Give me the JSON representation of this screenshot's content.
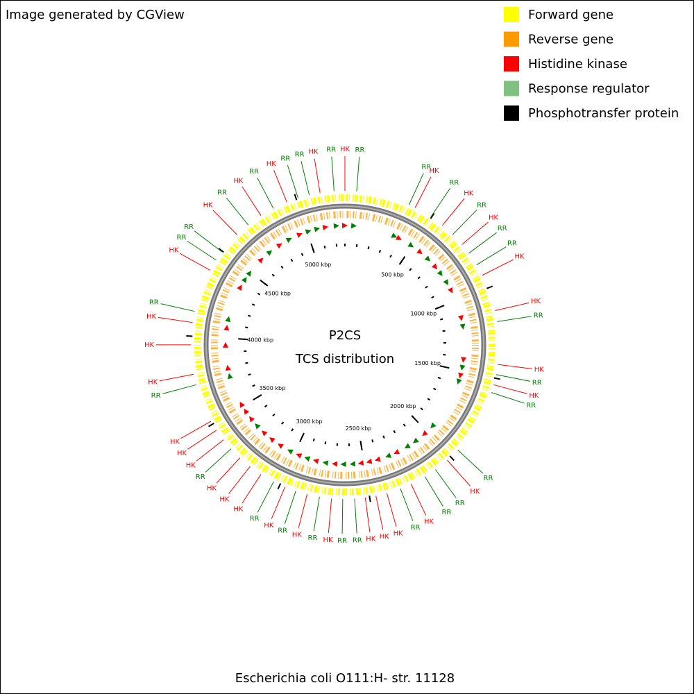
{
  "header": {
    "title": "Image generated by CGView"
  },
  "legend": [
    {
      "name": "Forward gene",
      "color": "#ffff00"
    },
    {
      "name": "Reverse gene",
      "color": "#ff9900"
    },
    {
      "name": "Histidine kinase",
      "color": "#ff0000"
    },
    {
      "name": "Response regulator",
      "color": "#80c080"
    },
    {
      "name": "Phosphotransfer protein",
      "color": "#000000"
    }
  ],
  "center": {
    "title": "P2CS",
    "subtitle": "TCS distribution"
  },
  "map": {
    "xlim": [
      0,
      5270
    ],
    "xticks": [
      {
        "value": 500,
        "label": "500 kbp"
      },
      {
        "value": 1000,
        "label": "1000 kbp"
      },
      {
        "value": 1500,
        "label": "1500 kbp"
      },
      {
        "value": 2000,
        "label": "2000 kbp"
      },
      {
        "value": 2500,
        "label": "2500 kbp"
      },
      {
        "value": 3000,
        "label": "3000 kbp"
      },
      {
        "value": 3500,
        "label": "3500 kbp"
      },
      {
        "value": 4000,
        "label": "4000 kbp"
      },
      {
        "value": 4500,
        "label": "4500 kbp"
      },
      {
        "value": 5000,
        "label": "5000 kbp"
      }
    ],
    "label_colors": {
      "HK": "#ff0000",
      "RR": "#008000"
    },
    "features": [
      {
        "label": "HK",
        "pos": 0
      },
      {
        "label": "RR",
        "pos": 64
      },
      {
        "label": "RR",
        "pos": 360
      },
      {
        "label": "HK",
        "pos": 397
      },
      {
        "label": "RR",
        "pos": 496
      },
      {
        "label": "HK",
        "pos": 574
      },
      {
        "label": "RR",
        "pos": 649
      },
      {
        "label": "HK",
        "pos": 723
      },
      {
        "label": "RR",
        "pos": 783
      },
      {
        "label": "RR",
        "pos": 859
      },
      {
        "label": "HK",
        "pos": 924
      },
      {
        "label": "HK",
        "pos": 1129
      },
      {
        "label": "RR",
        "pos": 1190
      },
      {
        "label": "HK",
        "pos": 1424
      },
      {
        "label": "RR",
        "pos": 1480
      },
      {
        "label": "HK",
        "pos": 1537
      },
      {
        "label": "RR",
        "pos": 1581
      },
      {
        "label": "RR",
        "pos": 1946
      },
      {
        "label": "HK",
        "pos": 2026
      },
      {
        "label": "RR",
        "pos": 2108
      },
      {
        "label": "RR",
        "pos": 2177
      },
      {
        "label": "HK",
        "pos": 2263
      },
      {
        "label": "RR",
        "pos": 2326
      },
      {
        "label": "HK",
        "pos": 2404
      },
      {
        "label": "HK",
        "pos": 2465
      },
      {
        "label": "HK",
        "pos": 2524
      },
      {
        "label": "RR",
        "pos": 2582
      },
      {
        "label": "RR",
        "pos": 2647
      },
      {
        "label": "HK",
        "pos": 2708
      },
      {
        "label": "RR",
        "pos": 2774
      },
      {
        "label": "HK",
        "pos": 2843
      },
      {
        "label": "RR",
        "pos": 2907
      },
      {
        "label": "HK",
        "pos": 2970
      },
      {
        "label": "RR",
        "pos": 3038
      },
      {
        "label": "HK",
        "pos": 3118
      },
      {
        "label": "HK",
        "pos": 3191
      },
      {
        "label": "HK",
        "pos": 3263
      },
      {
        "label": "RR",
        "pos": 3332
      },
      {
        "label": "HK",
        "pos": 3396
      },
      {
        "label": "HK",
        "pos": 3461
      },
      {
        "label": "HK",
        "pos": 3518
      },
      {
        "label": "RR",
        "pos": 3733
      },
      {
        "label": "HK",
        "pos": 3792
      },
      {
        "label": "HK",
        "pos": 3953
      },
      {
        "label": "HK",
        "pos": 4075
      },
      {
        "label": "RR",
        "pos": 4137
      },
      {
        "label": "HK",
        "pos": 4377
      },
      {
        "label": "RR",
        "pos": 4441
      },
      {
        "label": "RR",
        "pos": 4496
      },
      {
        "label": "HK",
        "pos": 4620
      },
      {
        "label": "RR",
        "pos": 4701
      },
      {
        "label": "HK",
        "pos": 4787
      },
      {
        "label": "RR",
        "pos": 4865
      },
      {
        "label": "HK",
        "pos": 4946
      },
      {
        "label": "RR",
        "pos": 5011
      },
      {
        "label": "RR",
        "pos": 5074
      },
      {
        "label": "HK",
        "pos": 5134
      },
      {
        "label": "RR",
        "pos": 5211
      }
    ]
  },
  "footer": {
    "caption": "Escherichia coli O111:H- str. 11128"
  }
}
